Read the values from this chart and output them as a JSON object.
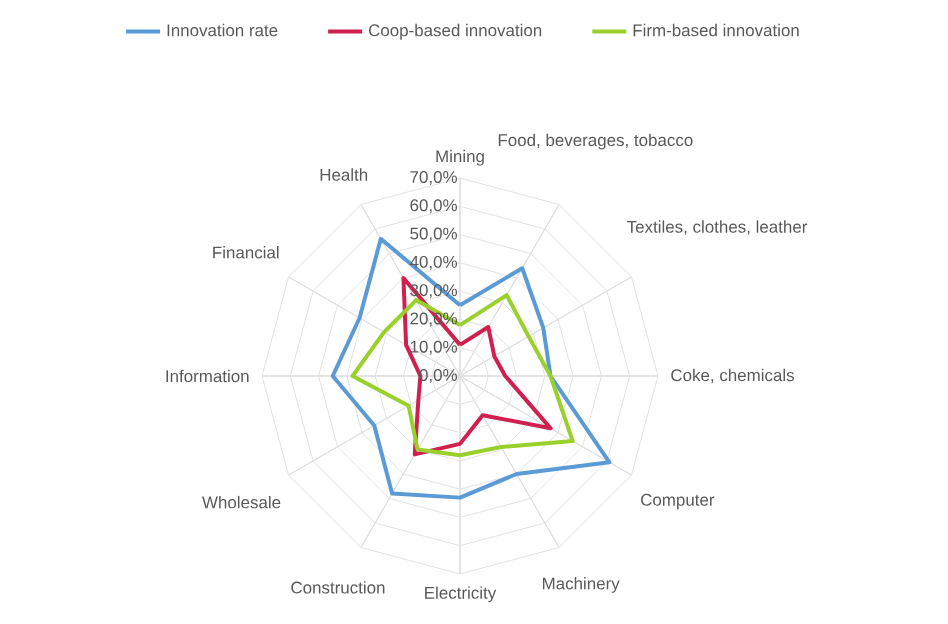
{
  "chart_data": {
    "type": "radar",
    "categories": [
      "Mining",
      "Food, beverages, tobacco",
      "Textiles, clothes, leather",
      "Coke, chemicals",
      "Computer",
      "Machinery",
      "Electricity",
      "Construction",
      "Wholesale",
      "Information",
      "Financial",
      "Health"
    ],
    "series": [
      {
        "name": "Innovation rate",
        "color": "#5b9bd5",
        "values": [
          25,
          44,
          34,
          32,
          61,
          40,
          43,
          48,
          35,
          45,
          41,
          56
        ]
      },
      {
        "name": "Coop-based innovation",
        "color": "#d0204f",
        "values": [
          11,
          20,
          14,
          16,
          37,
          16,
          24,
          32,
          17,
          14,
          22,
          40
        ]
      },
      {
        "name": "Firm-based innovation",
        "color": "#99d02c",
        "values": [
          18,
          33,
          28,
          32,
          46,
          29,
          28,
          30,
          21,
          38,
          31,
          31
        ]
      }
    ],
    "ylim": [
      0,
      70
    ],
    "yticks": [
      {
        "value": 0,
        "label": "0,0%"
      },
      {
        "value": 10,
        "label": "10,0%"
      },
      {
        "value": 20,
        "label": "20,0%"
      },
      {
        "value": 30,
        "label": "30,0%"
      },
      {
        "value": 40,
        "label": "40,0%"
      },
      {
        "value": 50,
        "label": "50,0%"
      },
      {
        "value": 60,
        "label": "60,0%"
      },
      {
        "value": 70,
        "label": "70,0%"
      }
    ],
    "grid": true,
    "legend": "top",
    "marker": "none",
    "line_style": "solid"
  }
}
